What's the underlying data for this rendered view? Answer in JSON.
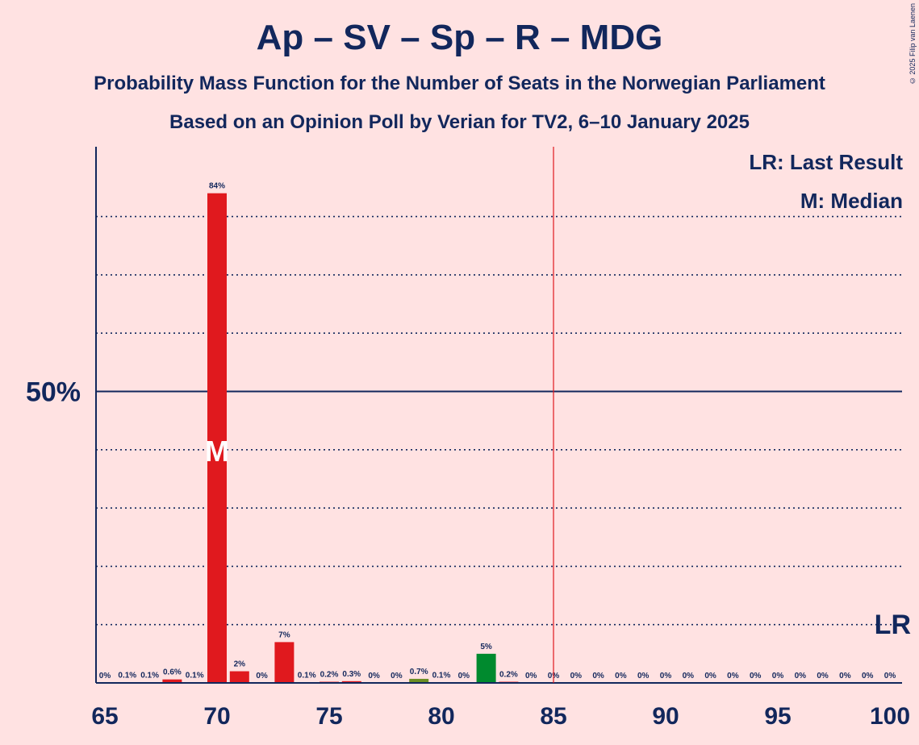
{
  "title": "Ap – SV – Sp – R – MDG",
  "subtitle1": "Probability Mass Function for the Number of Seats in the Norwegian Parliament",
  "subtitle2": "Based on an Opinion Poll by Verian for TV2, 6–10 January 2025",
  "copyright": "© 2025 Filip van Laenen",
  "legend": {
    "last_result": "LR: Last Result",
    "median": "M: Median"
  },
  "colors": {
    "background": "#FFE2E2",
    "text": "#12275C",
    "bar_main": "#E0191E",
    "bar_green": "#008A2E",
    "bar_olive": "#6B8E23",
    "majority_line": "#E0191E"
  },
  "chart_data": {
    "type": "bar",
    "xlim": [
      65,
      100
    ],
    "ylim": [
      0,
      92
    ],
    "x_ticks": [
      "65",
      "70",
      "75",
      "80",
      "85",
      "90",
      "95",
      "100"
    ],
    "y_ticks": [
      "50%"
    ],
    "majority_seat": 85,
    "median_seat": 70,
    "median_marker": "M",
    "last_result_seat": 100,
    "last_result_marker": "LR",
    "bars": [
      {
        "seat": 65,
        "value": 0,
        "label": "0%",
        "color": "#E0191E"
      },
      {
        "seat": 66,
        "value": 0.1,
        "label": "0.1%",
        "color": "#E0191E"
      },
      {
        "seat": 67,
        "value": 0.1,
        "label": "0.1%",
        "color": "#E0191E"
      },
      {
        "seat": 68,
        "value": 0.6,
        "label": "0.6%",
        "color": "#E0191E"
      },
      {
        "seat": 69,
        "value": 0.1,
        "label": "0.1%",
        "color": "#E0191E"
      },
      {
        "seat": 70,
        "value": 84,
        "label": "84%",
        "color": "#E0191E"
      },
      {
        "seat": 71,
        "value": 2,
        "label": "2%",
        "color": "#E0191E"
      },
      {
        "seat": 72,
        "value": 0,
        "label": "0%",
        "color": "#E0191E"
      },
      {
        "seat": 73,
        "value": 7,
        "label": "7%",
        "color": "#E0191E"
      },
      {
        "seat": 74,
        "value": 0.1,
        "label": "0.1%",
        "color": "#E0191E"
      },
      {
        "seat": 75,
        "value": 0.2,
        "label": "0.2%",
        "color": "#E0191E"
      },
      {
        "seat": 76,
        "value": 0.3,
        "label": "0.3%",
        "color": "#E0191E"
      },
      {
        "seat": 77,
        "value": 0,
        "label": "0%",
        "color": "#E0191E"
      },
      {
        "seat": 78,
        "value": 0,
        "label": "0%",
        "color": "#E0191E"
      },
      {
        "seat": 79,
        "value": 0.7,
        "label": "0.7%",
        "color": "#6B8E23"
      },
      {
        "seat": 80,
        "value": 0.1,
        "label": "0.1%",
        "color": "#E0191E"
      },
      {
        "seat": 81,
        "value": 0,
        "label": "0%",
        "color": "#E0191E"
      },
      {
        "seat": 82,
        "value": 5,
        "label": "5%",
        "color": "#008A2E"
      },
      {
        "seat": 83,
        "value": 0.2,
        "label": "0.2%",
        "color": "#E0191E"
      },
      {
        "seat": 84,
        "value": 0,
        "label": "0%",
        "color": "#E0191E"
      },
      {
        "seat": 85,
        "value": 0,
        "label": "0%",
        "color": "#E0191E"
      },
      {
        "seat": 86,
        "value": 0,
        "label": "0%",
        "color": "#E0191E"
      },
      {
        "seat": 87,
        "value": 0,
        "label": "0%",
        "color": "#E0191E"
      },
      {
        "seat": 88,
        "value": 0,
        "label": "0%",
        "color": "#E0191E"
      },
      {
        "seat": 89,
        "value": 0,
        "label": "0%",
        "color": "#E0191E"
      },
      {
        "seat": 90,
        "value": 0,
        "label": "0%",
        "color": "#E0191E"
      },
      {
        "seat": 91,
        "value": 0,
        "label": "0%",
        "color": "#E0191E"
      },
      {
        "seat": 92,
        "value": 0,
        "label": "0%",
        "color": "#E0191E"
      },
      {
        "seat": 93,
        "value": 0,
        "label": "0%",
        "color": "#E0191E"
      },
      {
        "seat": 94,
        "value": 0,
        "label": "0%",
        "color": "#E0191E"
      },
      {
        "seat": 95,
        "value": 0,
        "label": "0%",
        "color": "#E0191E"
      },
      {
        "seat": 96,
        "value": 0,
        "label": "0%",
        "color": "#E0191E"
      },
      {
        "seat": 97,
        "value": 0,
        "label": "0%",
        "color": "#E0191E"
      },
      {
        "seat": 98,
        "value": 0,
        "label": "0%",
        "color": "#E0191E"
      },
      {
        "seat": 99,
        "value": 0,
        "label": "0%",
        "color": "#E0191E"
      },
      {
        "seat": 100,
        "value": 0,
        "label": "0%",
        "color": "#E0191E"
      }
    ]
  }
}
